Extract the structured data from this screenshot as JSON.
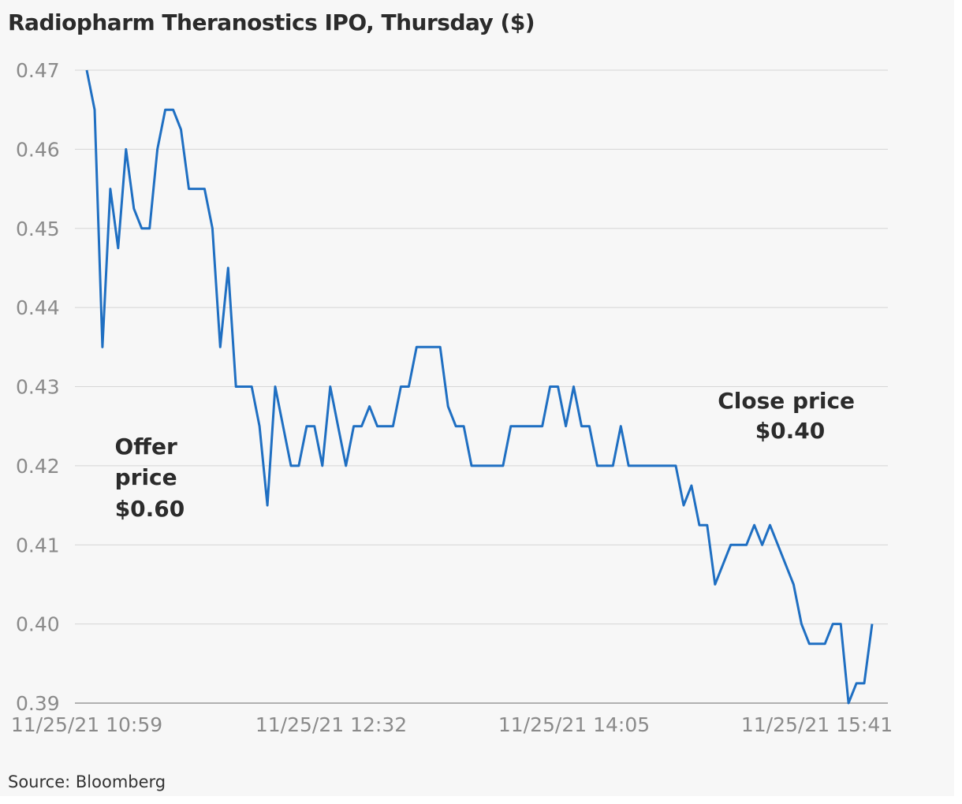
{
  "chart_data": {
    "type": "line",
    "title": "Radiopharm Theranostics IPO, Thursday ($)",
    "source": "Source: Bloomberg",
    "ylim": [
      0.39,
      0.47
    ],
    "yticks": [
      "0.47",
      "0.46",
      "0.45",
      "0.44",
      "0.43",
      "0.42",
      "0.41",
      "0.40",
      "0.39"
    ],
    "ytick_values": [
      0.47,
      0.46,
      0.45,
      0.44,
      0.43,
      0.42,
      0.41,
      0.4,
      0.39
    ],
    "xticks": [
      "11/25/21 10:59",
      "11/25/21 12:32",
      "11/25/21 14:05",
      "11/25/21 15:41"
    ],
    "grid": true,
    "line_color": "#1f6fc2",
    "series": [
      {
        "values": [
          0.47,
          0.465,
          0.435,
          0.455,
          0.4475,
          0.46,
          0.4525,
          0.45,
          0.45,
          0.46,
          0.465,
          0.465,
          0.4625,
          0.455,
          0.455,
          0.455,
          0.45,
          0.435,
          0.445,
          0.43,
          0.43,
          0.43,
          0.425,
          0.415,
          0.43,
          0.425,
          0.42,
          0.42,
          0.425,
          0.425,
          0.42,
          0.43,
          0.425,
          0.42,
          0.425,
          0.425,
          0.4275,
          0.425,
          0.425,
          0.425,
          0.43,
          0.43,
          0.435,
          0.435,
          0.435,
          0.435,
          0.4275,
          0.425,
          0.425,
          0.42,
          0.42,
          0.42,
          0.42,
          0.42,
          0.425,
          0.425,
          0.425,
          0.425,
          0.425,
          0.43,
          0.43,
          0.425,
          0.43,
          0.425,
          0.425,
          0.42,
          0.42,
          0.42,
          0.425,
          0.42,
          0.42,
          0.42,
          0.42,
          0.42,
          0.42,
          0.42,
          0.415,
          0.4175,
          0.4125,
          0.4125,
          0.405,
          0.4075,
          0.41,
          0.41,
          0.41,
          0.4125,
          0.41,
          0.4125,
          0.41,
          0.4075,
          0.405,
          0.4,
          0.3975,
          0.3975,
          0.3975,
          0.4,
          0.4,
          0.39,
          0.3925,
          0.3925,
          0.4
        ]
      }
    ],
    "annotations": [
      {
        "lines": [
          "Offer",
          "price",
          "$0.60"
        ]
      },
      {
        "lines": [
          "Close price",
          "$0.40"
        ]
      }
    ]
  }
}
